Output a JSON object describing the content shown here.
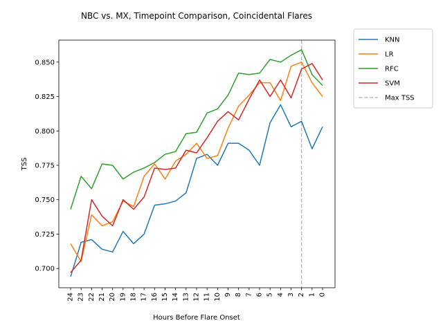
{
  "chart_data": {
    "type": "line",
    "title": "NBC vs. MX, Timepoint Comparison, Coincidental Flares",
    "xlabel": "Hours Before Flare Onset",
    "ylabel": "TSS",
    "categories": [
      "24",
      "23",
      "22",
      "21",
      "20",
      "19",
      "18",
      "17",
      "16",
      "15",
      "14",
      "13",
      "12",
      "11",
      "10",
      "9",
      "8",
      "7",
      "6",
      "5",
      "4",
      "3",
      "2",
      "1",
      "0"
    ],
    "ylim": [
      0.686,
      0.866
    ],
    "yticks": [
      "0.700",
      "0.725",
      "0.750",
      "0.775",
      "0.800",
      "0.825",
      "0.850"
    ],
    "ytick_values": [
      0.7,
      0.725,
      0.75,
      0.775,
      0.8,
      0.825,
      0.85
    ],
    "grid": false,
    "legend_position": "outside-top-right",
    "series": [
      {
        "name": "KNN",
        "color": "#1f77b4",
        "values": [
          0.694,
          0.719,
          0.721,
          0.714,
          0.712,
          0.727,
          0.718,
          0.725,
          0.746,
          0.747,
          0.749,
          0.755,
          0.78,
          0.783,
          0.775,
          0.791,
          0.791,
          0.786,
          0.775,
          0.806,
          0.819,
          0.803,
          0.807,
          0.787,
          0.803
        ]
      },
      {
        "name": "LR",
        "color": "#ff7f0e",
        "values": [
          0.718,
          0.705,
          0.739,
          0.731,
          0.734,
          0.749,
          0.745,
          0.767,
          0.776,
          0.765,
          0.778,
          0.783,
          0.791,
          0.78,
          0.782,
          0.802,
          0.818,
          0.826,
          0.835,
          0.835,
          0.822,
          0.847,
          0.85,
          0.835,
          0.825
        ]
      },
      {
        "name": "RFC",
        "color": "#2ca02c",
        "values": [
          0.743,
          0.767,
          0.758,
          0.776,
          0.775,
          0.765,
          0.77,
          0.773,
          0.777,
          0.783,
          0.785,
          0.798,
          0.799,
          0.813,
          0.816,
          0.826,
          0.842,
          0.841,
          0.842,
          0.852,
          0.85,
          0.855,
          0.859,
          0.841,
          0.833
        ]
      },
      {
        "name": "SVM",
        "color": "#d62728",
        "values": [
          0.697,
          0.706,
          0.75,
          0.738,
          0.731,
          0.75,
          0.743,
          0.752,
          0.773,
          0.772,
          0.773,
          0.786,
          0.784,
          0.795,
          0.807,
          0.814,
          0.808,
          0.823,
          0.837,
          0.825,
          0.837,
          0.824,
          0.845,
          0.849,
          0.837
        ]
      }
    ],
    "reference_line": {
      "name": "Max TSS",
      "x": "2",
      "color": "#bbbbbb",
      "style": "dashed"
    }
  }
}
